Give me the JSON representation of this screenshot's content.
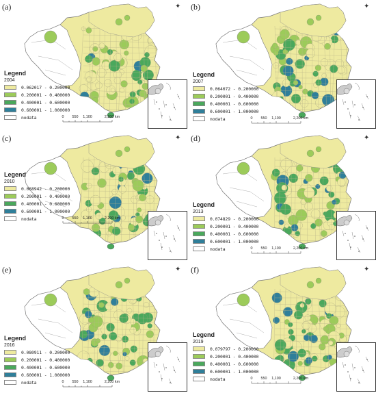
{
  "panels": [
    {
      "label": "(a)",
      "year": "2004",
      "min_range": "0.062017 - 0.200000"
    },
    {
      "label": "(b)",
      "year": "2007",
      "min_range": "0.064072 - 0.200000"
    },
    {
      "label": "(c)",
      "year": "2010",
      "min_range": "0.068942 - 0.200000"
    },
    {
      "label": "(d)",
      "year": "2013",
      "min_range": "0.074829 - 0.200000"
    },
    {
      "label": "(e)",
      "year": "2016",
      "min_range": "0.080911 - 0.200000"
    },
    {
      "label": "(f)",
      "year": "2019",
      "min_range": "0.079797 - 0.200000"
    }
  ],
  "legend": {
    "title": "Legend",
    "ranges": [
      "0.200001 - 0.400000",
      "0.400001 - 0.600000",
      "0.600001 - 1.000000"
    ],
    "nodata": "nodata",
    "colors": [
      "#eeeaa0",
      "#9ccb5a",
      "#4aa85c",
      "#2f7f9a",
      "#ffffff"
    ]
  },
  "scalebar": {
    "ticks": [
      "0",
      "550",
      "1,100",
      "2,200 km"
    ]
  },
  "north_arrow_icon": "north-arrow-icon"
}
